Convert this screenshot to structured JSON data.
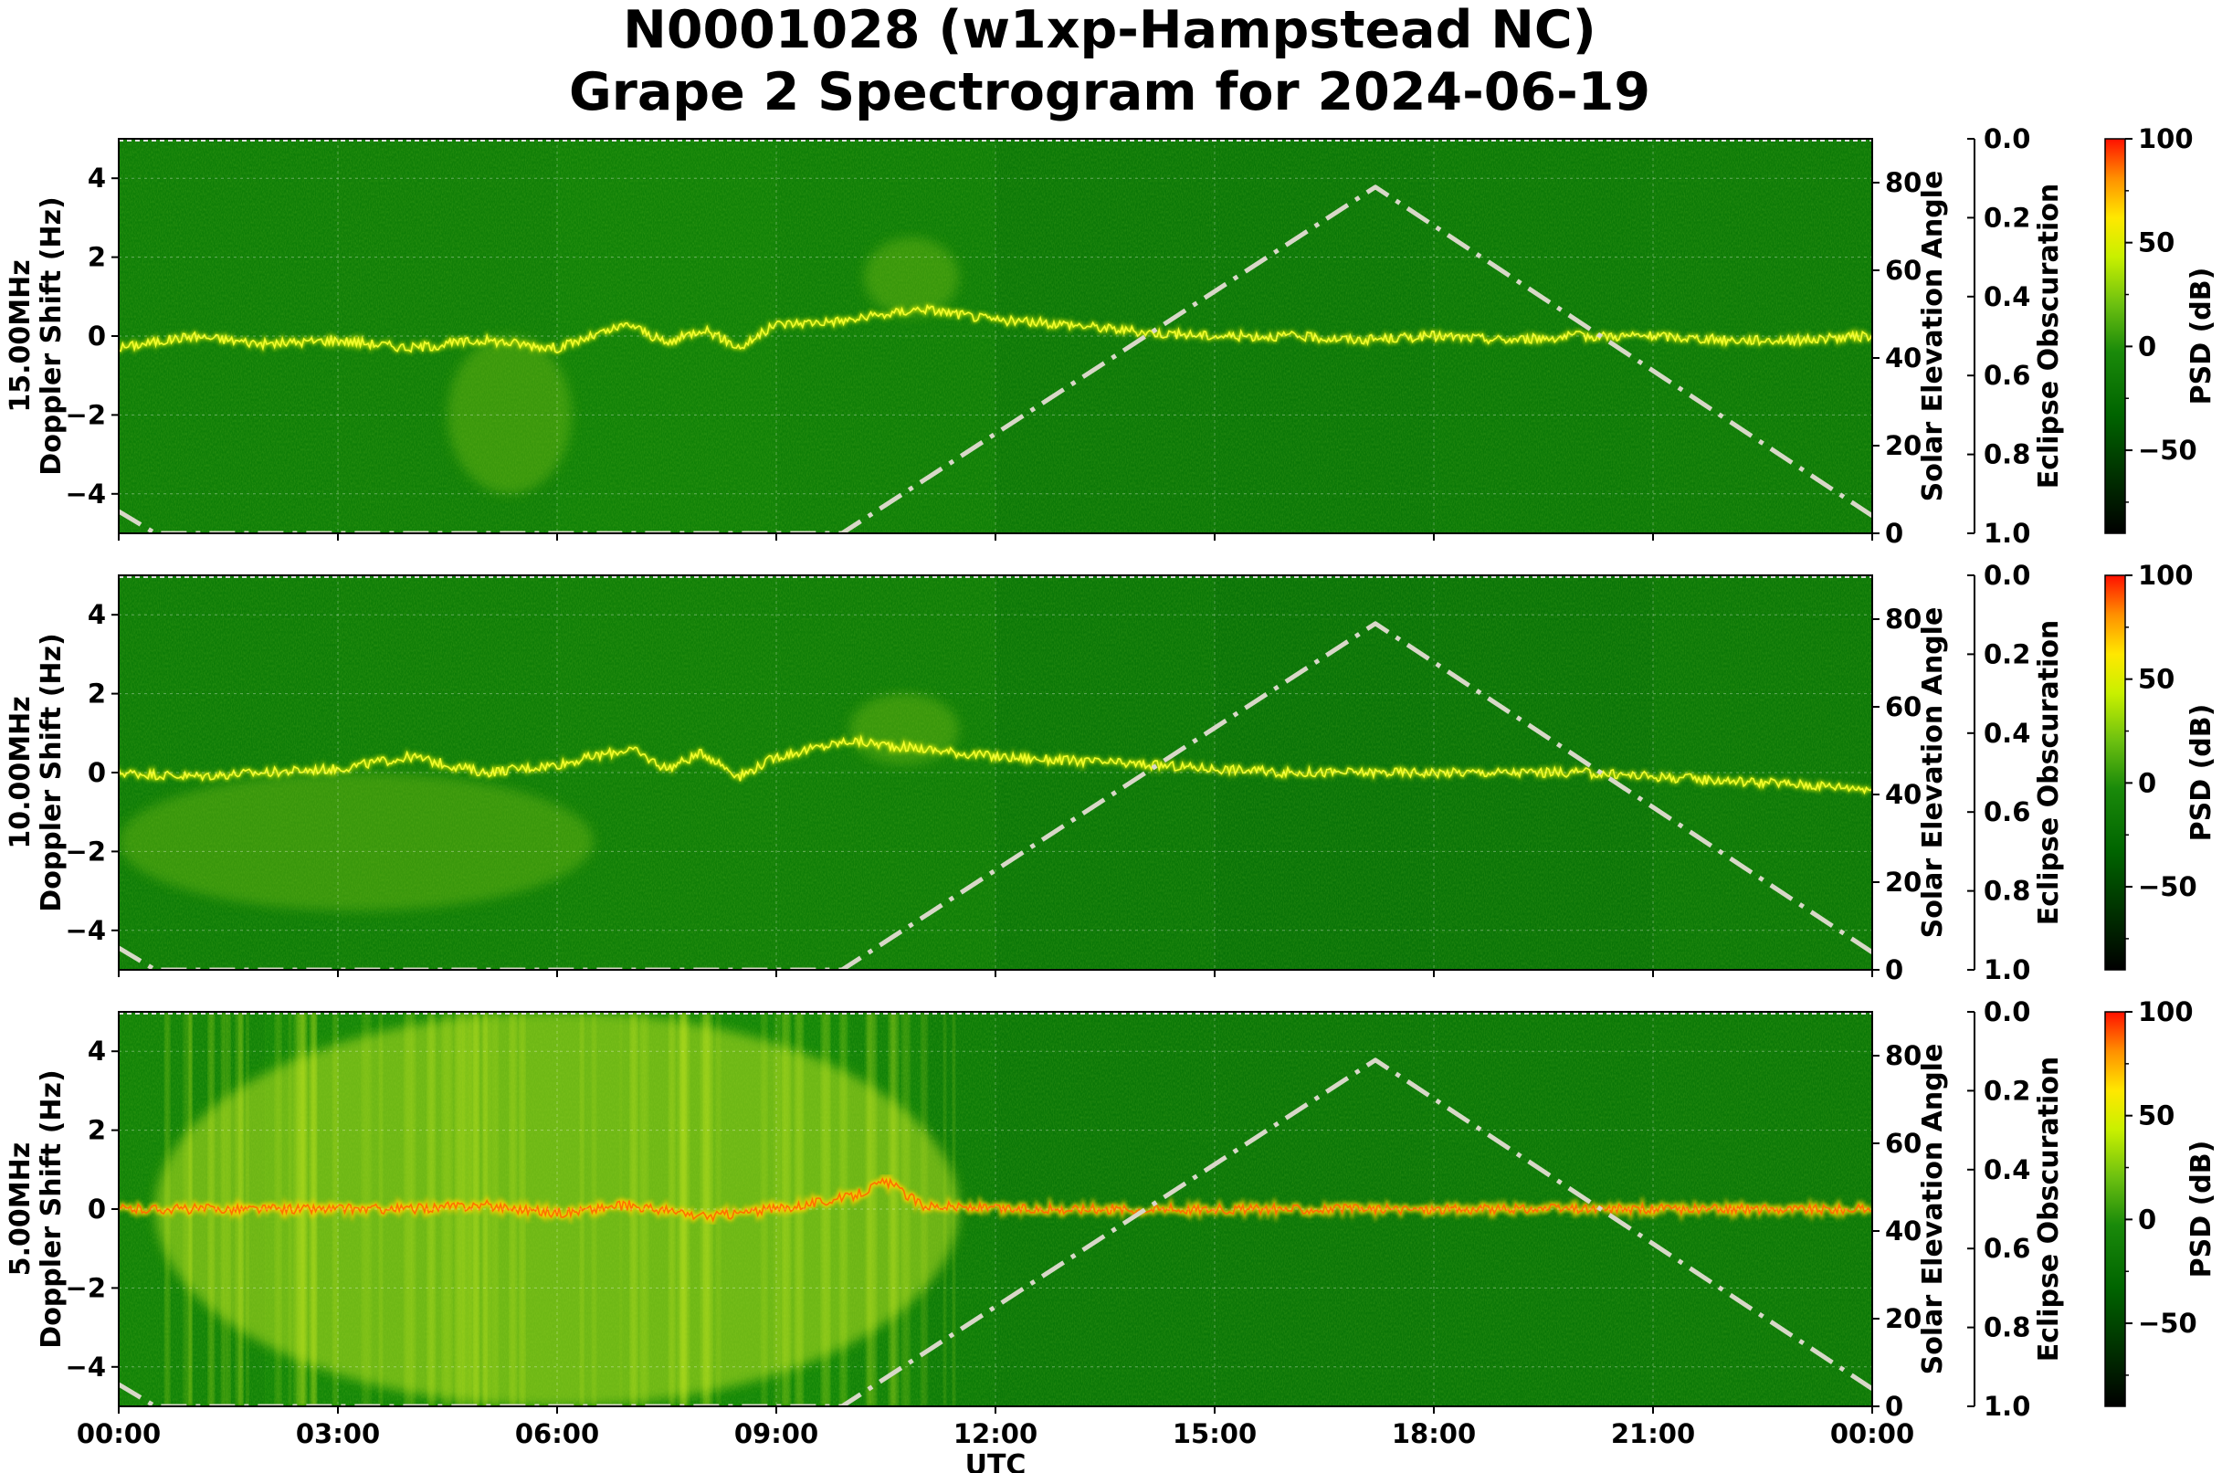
{
  "title_line1": "N0001028 (w1xp-Hampstead NC)",
  "title_line2": "Grape 2 Spectrogram for 2024-06-19",
  "colors": {
    "background_green": "#057a05",
    "trace_yellow": "#e6f000",
    "hot_red": "#ff3000",
    "solar_curve": "#d8d8c8",
    "colormap": [
      "#000000",
      "#004000",
      "#008000",
      "#40b000",
      "#a8e000",
      "#ffff00",
      "#ff9000",
      "#ff0000"
    ]
  },
  "chart_data": [
    {
      "type": "heatmap",
      "panel": "15.00MHz",
      "ylabel_line1": "15.00MHz",
      "ylabel_line2": "Doppler Shift (Hz)",
      "ylim": [
        -5,
        5
      ],
      "yticks": [
        -4,
        -2,
        0,
        2,
        4
      ],
      "ytick_labels": [
        "−4",
        "−2",
        "0",
        "2",
        "4"
      ],
      "xlim_hours": [
        0,
        24
      ],
      "secondary_ylabel": "Solar Elevation Angle",
      "secondary_ylim": [
        0,
        90
      ],
      "secondary_yticks": [
        0,
        20,
        40,
        60,
        80
      ],
      "eclipse_label": "Eclipse Obscuration",
      "eclipse_ylim": [
        1.0,
        0.0
      ],
      "eclipse_ticks": [
        "0.0",
        "0.2",
        "0.4",
        "0.6",
        "0.8",
        "1.0"
      ],
      "colorbar_label": "PSD (dB)",
      "colorbar_range": [
        -90,
        100
      ],
      "colorbar_ticks": [
        "100",
        "50",
        "0",
        "−50"
      ],
      "doppler_trace": {
        "x": [
          0,
          1,
          2,
          3,
          4,
          5,
          6,
          7,
          7.5,
          8,
          8.5,
          9,
          10,
          11,
          12,
          13,
          14,
          15,
          16,
          17,
          18,
          19,
          20,
          21,
          22,
          23,
          24
        ],
        "y": [
          -0.3,
          0.0,
          -0.2,
          -0.1,
          -0.3,
          -0.1,
          -0.3,
          0.3,
          -0.2,
          0.2,
          -0.3,
          0.3,
          0.4,
          0.7,
          0.4,
          0.3,
          0.1,
          0.0,
          0.0,
          -0.1,
          0.0,
          -0.1,
          0.0,
          0.0,
          -0.1,
          -0.1,
          0.0
        ]
      },
      "spread_regions": [
        {
          "x": [
            4.5,
            6.2
          ],
          "y": [
            -4.0,
            0.0
          ]
        },
        {
          "x": [
            10.2,
            11.5
          ],
          "y": [
            0.5,
            2.5
          ]
        }
      ],
      "intensity_profile": {
        "x": [
          0,
          3,
          6,
          9,
          12,
          15,
          18,
          21,
          24
        ],
        "level": [
          0.55,
          0.55,
          0.6,
          0.65,
          0.45,
          0.35,
          0.4,
          0.45,
          0.45
        ]
      },
      "dashed_bound_y": 5.0,
      "solar_elevation": {
        "x_hours": [
          0,
          0.5,
          9.9,
          17.2,
          24.0
        ],
        "deg": [
          5,
          0,
          0,
          79,
          4
        ]
      }
    },
    {
      "type": "heatmap",
      "panel": "10.00MHz",
      "ylabel_line1": "10.00MHz",
      "ylabel_line2": "Doppler Shift (Hz)",
      "ylim": [
        -5,
        5
      ],
      "yticks": [
        -4,
        -2,
        0,
        2,
        4
      ],
      "ytick_labels": [
        "−4",
        "−2",
        "0",
        "2",
        "4"
      ],
      "xlim_hours": [
        0,
        24
      ],
      "secondary_ylabel": "Solar Elevation Angle",
      "secondary_ylim": [
        0,
        90
      ],
      "secondary_yticks": [
        0,
        20,
        40,
        60,
        80
      ],
      "eclipse_label": "Eclipse Obscuration",
      "eclipse_ylim": [
        1.0,
        0.0
      ],
      "eclipse_ticks": [
        "0.0",
        "0.2",
        "0.4",
        "0.6",
        "0.8",
        "1.0"
      ],
      "colorbar_label": "PSD (dB)",
      "colorbar_range": [
        -90,
        100
      ],
      "colorbar_ticks": [
        "100",
        "50",
        "0",
        "−50"
      ],
      "doppler_trace": {
        "x": [
          0,
          1,
          2,
          3,
          4,
          5,
          6,
          7,
          7.5,
          8,
          8.5,
          9,
          10,
          11,
          12,
          13,
          14,
          15,
          16,
          18,
          20,
          22,
          23,
          24
        ],
        "y": [
          0.0,
          -0.1,
          0.0,
          0.1,
          0.4,
          0.0,
          0.2,
          0.6,
          0.1,
          0.5,
          -0.1,
          0.4,
          0.8,
          0.6,
          0.4,
          0.3,
          0.2,
          0.1,
          0.0,
          0.0,
          0.0,
          -0.2,
          -0.3,
          -0.4
        ]
      },
      "spread_regions": [
        {
          "x": [
            0.0,
            6.5
          ],
          "y": [
            -3.5,
            0.0
          ]
        },
        {
          "x": [
            10.0,
            11.5
          ],
          "y": [
            0.2,
            2.0
          ]
        }
      ],
      "intensity_profile": {
        "x": [
          0,
          3,
          6,
          9,
          12,
          15,
          18,
          21,
          24
        ],
        "level": [
          0.5,
          0.5,
          0.55,
          0.6,
          0.45,
          0.3,
          0.25,
          0.35,
          0.45
        ]
      },
      "dashed_bound_y": 5.0,
      "solar_elevation": {
        "x_hours": [
          0,
          0.5,
          9.9,
          17.2,
          24.0
        ],
        "deg": [
          5,
          0,
          0,
          79,
          4
        ]
      }
    },
    {
      "type": "heatmap",
      "panel": "5.00MHz",
      "ylabel_line1": "5.00MHz",
      "ylabel_line2": "Doppler Shift (Hz)",
      "ylim": [
        -5,
        5
      ],
      "yticks": [
        -4,
        -2,
        0,
        2,
        4
      ],
      "ytick_labels": [
        "−4",
        "−2",
        "0",
        "2",
        "4"
      ],
      "xlim_hours": [
        0,
        24
      ],
      "xtick_labels": [
        "00:00",
        "03:00",
        "06:00",
        "09:00",
        "12:00",
        "15:00",
        "18:00",
        "21:00",
        "00:00"
      ],
      "xlabel": "UTC",
      "secondary_ylabel": "Solar Elevation Angle",
      "secondary_ylim": [
        0,
        90
      ],
      "secondary_yticks": [
        0,
        20,
        40,
        60,
        80
      ],
      "eclipse_label": "Eclipse Obscuration",
      "eclipse_ylim": [
        1.0,
        0.0
      ],
      "eclipse_ticks": [
        "0.0",
        "0.2",
        "0.4",
        "0.6",
        "0.8",
        "1.0"
      ],
      "colorbar_label": "PSD (dB)",
      "colorbar_range": [
        -90,
        100
      ],
      "colorbar_ticks": [
        "100",
        "50",
        "0",
        "−50"
      ],
      "doppler_trace": {
        "x": [
          0,
          2,
          4,
          5,
          6,
          7,
          8,
          9,
          10,
          10.5,
          11,
          12,
          13,
          14,
          18,
          24
        ],
        "y": [
          0.0,
          0.0,
          0.0,
          0.1,
          -0.1,
          0.1,
          -0.2,
          0.0,
          0.3,
          0.7,
          0.1,
          0.0,
          0.0,
          0.0,
          0.0,
          0.0
        ]
      },
      "spread_regions": [
        {
          "x": [
            0.5,
            11.5
          ],
          "y": [
            -5.0,
            5.0
          ]
        }
      ],
      "intensity_profile": {
        "x": [
          0,
          2,
          4,
          6,
          8,
          10,
          11,
          12,
          15,
          18,
          21,
          24
        ],
        "level": [
          0.6,
          0.75,
          0.8,
          0.8,
          0.8,
          0.7,
          0.55,
          0.4,
          0.35,
          0.35,
          0.4,
          0.4
        ]
      },
      "dashed_bound_y": 5.0,
      "solar_elevation": {
        "x_hours": [
          0,
          0.5,
          9.9,
          17.2,
          24.0
        ],
        "deg": [
          5,
          0,
          0,
          79,
          4
        ]
      }
    }
  ]
}
